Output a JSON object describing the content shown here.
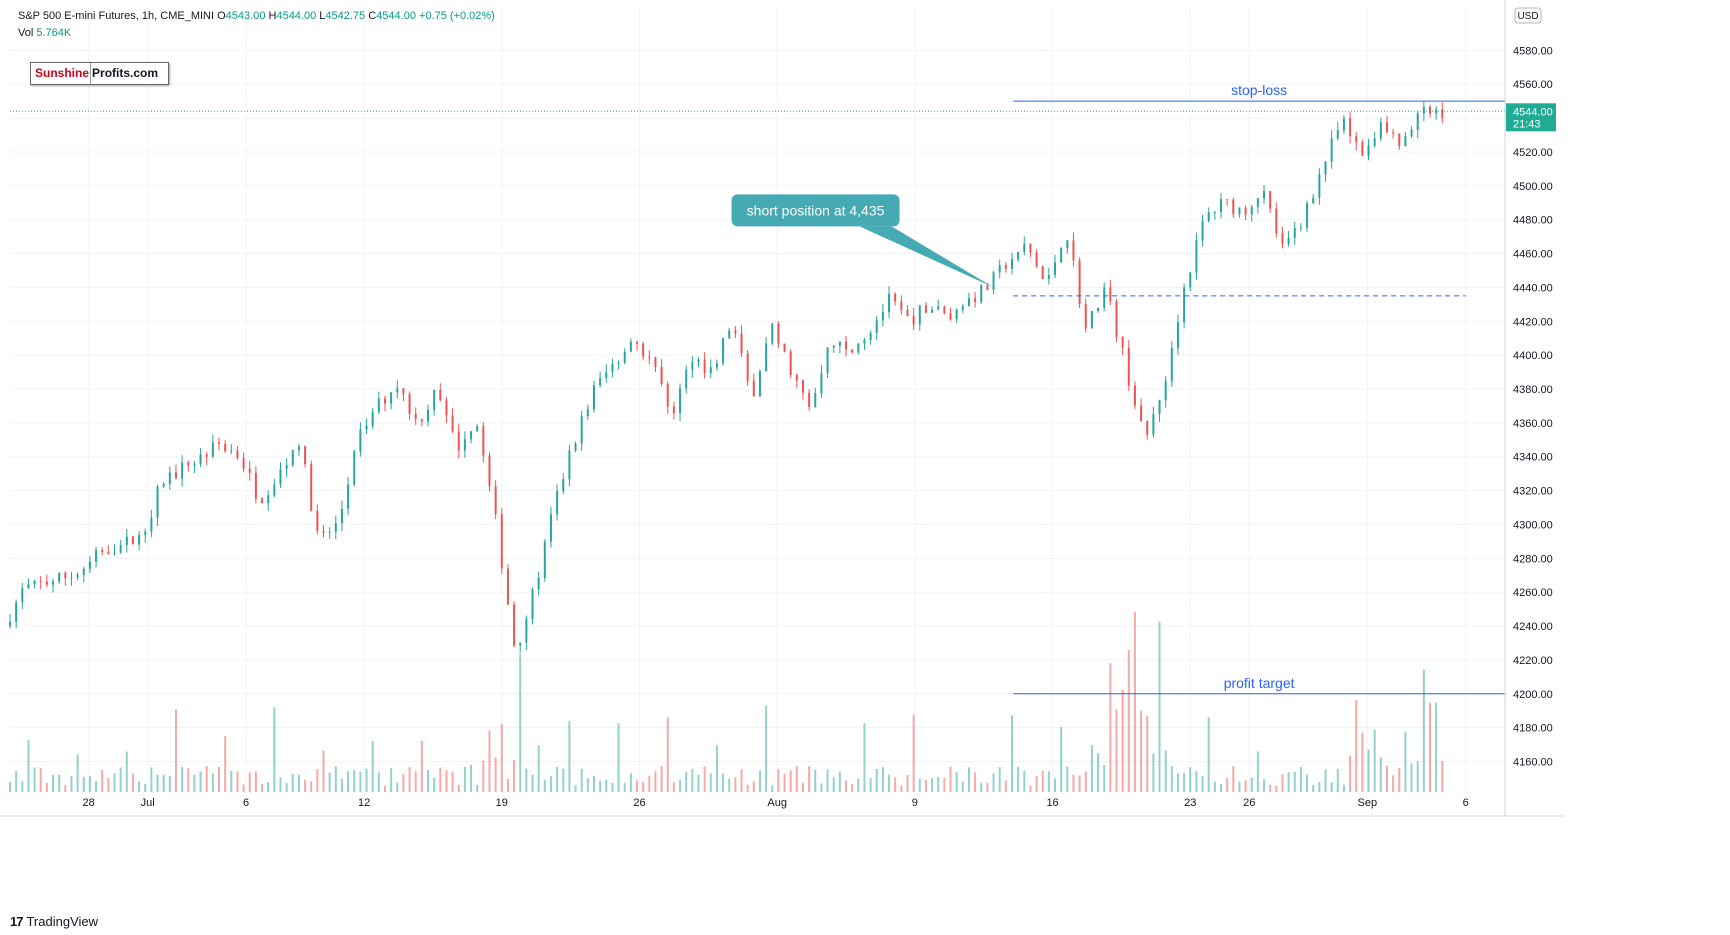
{
  "header": {
    "symbol": "S&P 500 E-mini Futures, 1h, CME_MINI",
    "o_label": "O",
    "o_value": "4543.00",
    "h_label": "H",
    "h_value": "4544.00",
    "l_label": "L",
    "l_value": "4542.75",
    "c_label": "C",
    "c_value": "4544.00",
    "change": "+0.75 (+0.02%)",
    "vol_label": "Vol",
    "vol_value": "5.764K"
  },
  "logo": {
    "part1": "Sunshine",
    "part2": "Profits.com"
  },
  "footer": {
    "brand_mark": "17",
    "brand": "TradingView"
  },
  "colors": {
    "up": "#26a69a",
    "down": "#ef5350",
    "accent": "#2962ff",
    "badge": "#22ab94",
    "callout": "#45aab4"
  },
  "chart_data": {
    "type": "candlestick",
    "currency": "USD",
    "y_ticks": [
      4160,
      4180,
      4200,
      4220,
      4240,
      4260,
      4280,
      4300,
      4320,
      4340,
      4360,
      4380,
      4400,
      4420,
      4440,
      4460,
      4480,
      4500,
      4520,
      4540,
      4560,
      4580
    ],
    "ylim": [
      4142,
      4605
    ],
    "x_range": [
      "2021-06-24",
      "2021-09-08"
    ],
    "x_ticks": [
      {
        "date": "2021-06-28",
        "label": "28"
      },
      {
        "date": "2021-07-01",
        "label": "Jul"
      },
      {
        "date": "2021-07-06",
        "label": "6"
      },
      {
        "date": "2021-07-12",
        "label": "12"
      },
      {
        "date": "2021-07-19",
        "label": "19"
      },
      {
        "date": "2021-07-26",
        "label": "26"
      },
      {
        "date": "2021-08-02",
        "label": "Aug"
      },
      {
        "date": "2021-08-09",
        "label": "9"
      },
      {
        "date": "2021-08-16",
        "label": "16"
      },
      {
        "date": "2021-08-23",
        "label": "23"
      },
      {
        "date": "2021-08-26",
        "label": "26"
      },
      {
        "date": "2021-09-01",
        "label": "Sep"
      },
      {
        "date": "2021-09-06",
        "label": "6"
      }
    ],
    "price_path": [
      [
        "2021-06-24",
        4240
      ],
      [
        "2021-06-25",
        4262
      ],
      [
        "2021-06-28",
        4272
      ],
      [
        "2021-06-29",
        4285
      ],
      [
        "2021-07-01",
        4292
      ],
      [
        "2021-07-02",
        4325
      ],
      [
        "2021-07-05",
        4348
      ],
      [
        "2021-07-06",
        4340
      ],
      [
        "2021-07-07",
        4315
      ],
      [
        "2021-07-08",
        4330
      ],
      [
        "2021-07-09",
        4350
      ],
      [
        "2021-07-10",
        4290
      ],
      [
        "2021-07-11",
        4300
      ],
      [
        "2021-07-12",
        4350
      ],
      [
        "2021-07-13",
        4370
      ],
      [
        "2021-07-14",
        4383
      ],
      [
        "2021-07-15",
        4360
      ],
      [
        "2021-07-16",
        4378
      ],
      [
        "2021-07-17",
        4345
      ],
      [
        "2021-07-18",
        4362
      ],
      [
        "2021-07-19",
        4302
      ],
      [
        "2021-07-20",
        4225
      ],
      [
        "2021-07-21",
        4262
      ],
      [
        "2021-07-22",
        4312
      ],
      [
        "2021-07-23",
        4350
      ],
      [
        "2021-07-24",
        4380
      ],
      [
        "2021-07-25",
        4395
      ],
      [
        "2021-07-26",
        4410
      ],
      [
        "2021-07-27",
        4395
      ],
      [
        "2021-07-28",
        4366
      ],
      [
        "2021-07-29",
        4400
      ],
      [
        "2021-07-30",
        4390
      ],
      [
        "2021-07-31",
        4420
      ],
      [
        "2021-08-01",
        4375
      ],
      [
        "2021-08-02",
        4416
      ],
      [
        "2021-08-03",
        4392
      ],
      [
        "2021-08-04",
        4366
      ],
      [
        "2021-08-05",
        4410
      ],
      [
        "2021-08-06",
        4400
      ],
      [
        "2021-08-07",
        4415
      ],
      [
        "2021-08-08",
        4432
      ],
      [
        "2021-08-09",
        4420
      ],
      [
        "2021-08-10",
        4430
      ],
      [
        "2021-08-11",
        4422
      ],
      [
        "2021-08-12",
        4432
      ],
      [
        "2021-08-13",
        4440
      ],
      [
        "2021-08-14",
        4455
      ],
      [
        "2021-08-15",
        4465
      ],
      [
        "2021-08-16",
        4440
      ],
      [
        "2021-08-17",
        4476
      ],
      [
        "2021-08-18",
        4415
      ],
      [
        "2021-08-19",
        4440
      ],
      [
        "2021-08-20",
        4395
      ],
      [
        "2021-08-21",
        4348
      ],
      [
        "2021-08-22",
        4385
      ],
      [
        "2021-08-23",
        4440
      ],
      [
        "2021-08-24",
        4480
      ],
      [
        "2021-08-25",
        4490
      ],
      [
        "2021-08-26",
        4485
      ],
      [
        "2021-08-27",
        4498
      ],
      [
        "2021-08-28",
        4462
      ],
      [
        "2021-08-29",
        4480
      ],
      [
        "2021-08-30",
        4510
      ],
      [
        "2021-08-31",
        4538
      ],
      [
        "2021-09-01",
        4518
      ],
      [
        "2021-09-02",
        4536
      ],
      [
        "2021-09-03",
        4522
      ],
      [
        "2021-09-04",
        4543
      ],
      [
        "2021-09-05",
        4544
      ]
    ],
    "last_price": "4544.00",
    "countdown": "21:43",
    "annotations": [
      {
        "kind": "hline",
        "name": "stop-loss",
        "label": "stop-loss",
        "y": 4550,
        "x_from": "2021-08-14",
        "x_to": "2021-09-08"
      },
      {
        "kind": "hline",
        "name": "profit-target",
        "label": "profit target",
        "y": 4200,
        "x_from": "2021-08-14",
        "x_to": "2021-09-08"
      },
      {
        "kind": "dashed-hline",
        "name": "short-entry",
        "y": 4435,
        "x_from": "2021-08-14",
        "x_to": "2021-09-06"
      },
      {
        "kind": "callout",
        "name": "short-position",
        "label": "short position at 4,435",
        "anchor_date": "2021-08-13",
        "anchor_y": 4440
      }
    ],
    "volume_path": [
      [
        "2021-07-19",
        0.35
      ],
      [
        "2021-07-20",
        0.55
      ],
      [
        "2021-08-19",
        0.6
      ],
      [
        "2021-08-20",
        0.85
      ],
      [
        "2021-08-21",
        0.7
      ],
      [
        "2021-09-01",
        0.55
      ],
      [
        "2021-09-04",
        0.45
      ]
    ]
  }
}
